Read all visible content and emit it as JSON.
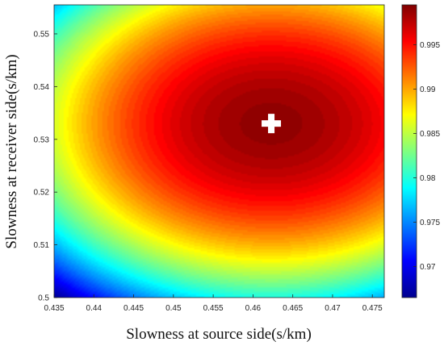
{
  "chart_data": {
    "type": "heatmap",
    "title": "",
    "xlabel": "Slowness at source side(s/km)",
    "ylabel": "Slowness at receiver side(s/km)",
    "xlim": [
      0.435,
      0.4765
    ],
    "ylim": [
      0.5,
      0.5555
    ],
    "x_ticks": [
      "0.435",
      "0.44",
      "0.445",
      "0.45",
      "0.455",
      "0.46",
      "0.465",
      "0.47",
      "0.475"
    ],
    "y_ticks": [
      "0.5",
      "0.51",
      "0.52",
      "0.53",
      "0.54",
      "0.55"
    ],
    "colorbar": {
      "colormap": "jet",
      "range": [
        0.9665,
        0.9995
      ],
      "ticks": [
        "0.97",
        "0.975",
        "0.98",
        "0.985",
        "0.99",
        "0.995"
      ]
    },
    "surface": {
      "peak_value": 0.999,
      "peak_x": 0.4623,
      "peak_y": 0.533,
      "value_at_lower_left_corner": 0.9665
    },
    "marker": {
      "symbol": "plus",
      "color": "#ffffff",
      "x": 0.4623,
      "y": 0.533
    },
    "grid": false
  }
}
